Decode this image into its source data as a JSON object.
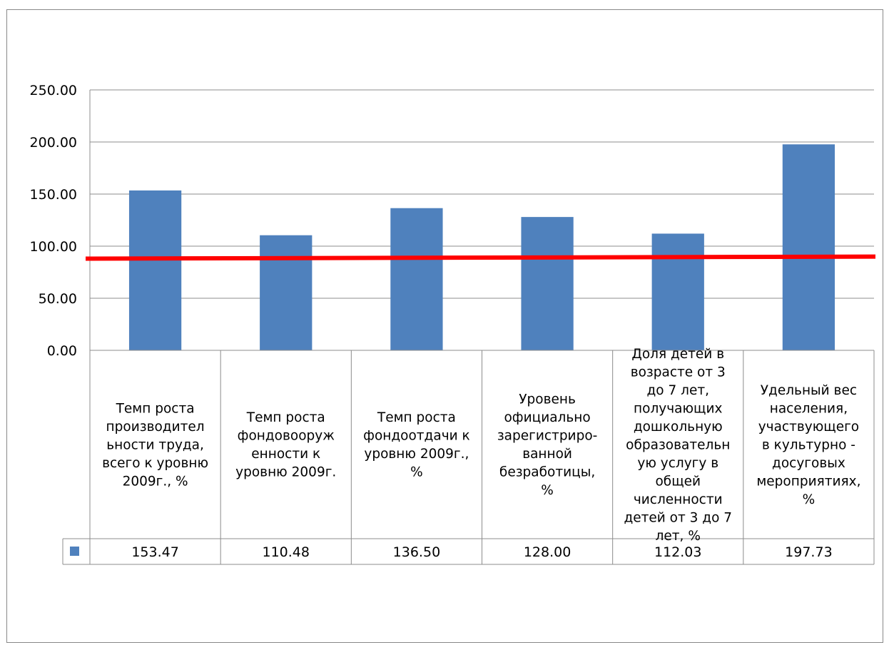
{
  "chart_data": {
    "type": "bar",
    "title": "",
    "xlabel": "",
    "ylabel": "",
    "ylim": [
      0,
      250
    ],
    "yticks": [
      "0.00",
      "50.00",
      "100.00",
      "150.00",
      "200.00",
      "250.00"
    ],
    "grid": true,
    "categories": [
      "Темп роста производител ьности труда, всего к уровню 2009г., %",
      "Темп роста фондовооруж енности к уровню 2009г.",
      "Темп роста фондоотдачи к уровню 2009г., %",
      "Уровень официально зарегистриро- ванной безработицы, %",
      "Доля детей в возрасте от 3 до 7 лет, получающих дошкольную образовательн ую услугу в общей численности детей от 3 до 7 лет, %",
      "Удельный вес населения, участвующего в культурно - досуговых мероприятиях, %"
    ],
    "category_lines": [
      [
        "Темп роста",
        "производител",
        "ьности труда,",
        "всего к уровню",
        "2009г., %"
      ],
      [
        "Темп роста",
        "фондовооруж",
        "енности к",
        "уровню 2009г."
      ],
      [
        "Темп роста",
        "фондоотдачи к",
        "уровню 2009г.,",
        "%"
      ],
      [
        "Уровень",
        "официально",
        "зарегистриро-",
        "ванной",
        "безработицы,",
        "%"
      ],
      [
        "Доля детей в",
        "возрасте от 3",
        "до 7 лет,",
        "получающих",
        "дошкольную",
        "образовательн",
        "ую услугу в",
        "общей",
        "численности",
        "детей от 3 до 7",
        "лет, %"
      ],
      [
        "Удельный вес",
        "населения,",
        "участвующего",
        "в культурно -",
        "досуговых",
        "мероприятиях,",
        "%"
      ]
    ],
    "series": [
      {
        "values": [
          153.47,
          110.48,
          136.5,
          128.0,
          112.03,
          197.73
        ],
        "labels": [
          "153.47",
          "110.48",
          "136.50",
          "128.00",
          "112.03",
          "197.73"
        ],
        "color": "#4F81BD"
      }
    ],
    "reference_line": {
      "color": "#FF0000",
      "y_start": 88,
      "y_end": 90
    },
    "legend": "data-table"
  }
}
